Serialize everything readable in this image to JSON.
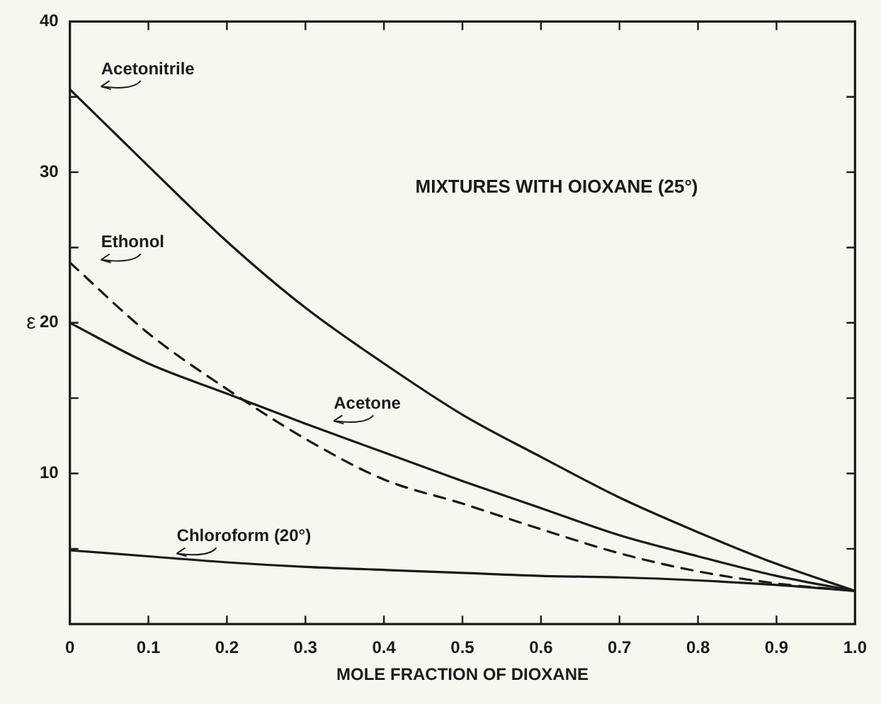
{
  "chart_data": {
    "type": "line",
    "title": "MIXTURES WITH OIOXANE (25°)",
    "xlabel": "MOLE FRACTION OF DIOXANE",
    "ylabel": "ε",
    "x": [
      0,
      0.1,
      0.2,
      0.3,
      0.4,
      0.5,
      0.6,
      0.7,
      0.8,
      0.9,
      1.0
    ],
    "series": [
      {
        "name": "Acetonitrile",
        "color": "#1a1a1a",
        "values": [
          35.5,
          30.4,
          25.4,
          21.0,
          17.3,
          13.9,
          11.1,
          8.4,
          6.1,
          4.0,
          2.2
        ]
      },
      {
        "name": "Ethonol",
        "color": "#1a1a1a",
        "line_style": "dashed",
        "values": [
          24.0,
          19.3,
          15.6,
          12.3,
          9.6,
          8.0,
          6.3,
          4.7,
          3.5,
          2.7,
          2.2
        ]
      },
      {
        "name": "Acetone",
        "color": "#1a1a1a",
        "values": [
          20.0,
          17.3,
          15.3,
          13.3,
          11.4,
          9.5,
          7.7,
          5.9,
          4.5,
          3.2,
          2.2
        ]
      },
      {
        "name": "Chloroform (20°)",
        "color": "#1a1a1a",
        "values": [
          4.9,
          4.5,
          4.1,
          3.8,
          3.6,
          3.4,
          3.2,
          3.1,
          2.9,
          2.6,
          2.2
        ]
      }
    ],
    "xlim": [
      0,
      1.0
    ],
    "xticks": [
      0,
      0.1,
      0.2,
      0.3,
      0.4,
      0.5,
      0.6,
      0.7,
      0.8,
      0.9,
      {
        "value": 1.0,
        "label": "1.0"
      }
    ],
    "ylim": [
      0,
      40
    ],
    "yticks": [
      {
        "value": 5,
        "label": null
      },
      10,
      {
        "value": 15,
        "label": null
      },
      20,
      {
        "value": 25,
        "label": null
      },
      30,
      {
        "value": 35,
        "label": null
      },
      40
    ],
    "tick_labels": "xy",
    "grid": false,
    "legend": false,
    "marker": "none",
    "line_style": "solid"
  }
}
